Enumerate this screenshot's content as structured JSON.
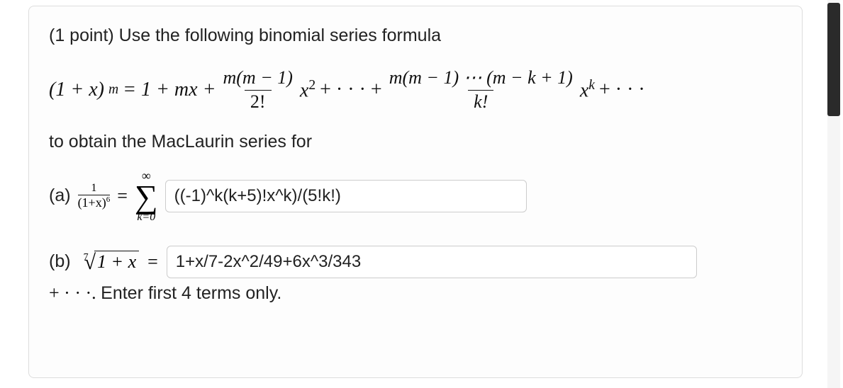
{
  "problem": {
    "points_label": "(1 point) ",
    "intro": "Use the following binomial series formula",
    "formula": {
      "lhs_base": "(1 + x)",
      "lhs_exp": "m",
      "eq": " = 1 + mx + ",
      "frac1_num": "m(m − 1)",
      "frac1_den": "2!",
      "after_frac1": "x",
      "exp2": "2",
      "plus_dots": " + · · · + ",
      "frac2_num": "m(m − 1) ⋯ (m − k + 1)",
      "frac2_den": "k!",
      "after_frac2": "x",
      "expk": "k",
      "tail": " + · · ·"
    },
    "subtext": "to obtain the MacLaurin series for",
    "part_a": {
      "label": "(a)",
      "frac_num": "1",
      "frac_den_pre": "(1+x)",
      "frac_den_exp": "6",
      "equals": " = ",
      "sigma_top": "∞",
      "sigma": "∑",
      "sigma_bot": "k=0",
      "answer": "((-1)^k(k+5)!x^k)/(5!k!)"
    },
    "part_b": {
      "label": "(b)",
      "root_index": "7",
      "radicand": "1 + x",
      "equals": " = ",
      "answer": "1+x/7-2x^2/49+6x^3/343",
      "trail": "+ · · ·. ",
      "instruction": "Enter first 4 terms only."
    }
  },
  "style": {
    "card_border": "#dddddd",
    "input_border": "#cccccc",
    "text_color": "#222222",
    "scroll_thumb": "#2a2a2a"
  }
}
